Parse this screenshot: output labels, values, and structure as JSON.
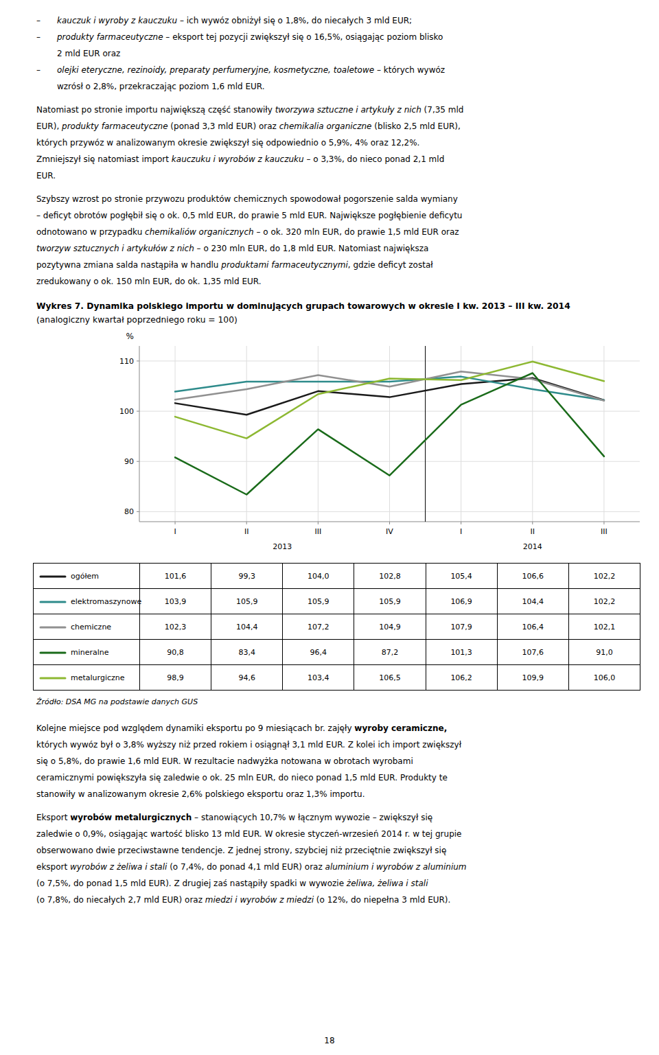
{
  "text_before": [
    {
      "items": [
        {
          "marker": "–",
          "lines": [
            [
              {
                "text": "kauczuk i wyroby z kauczuku",
                "italic": true
              },
              {
                "text": " – ich wywóz obniżył się o 1,8%, do niecałych 3 mld EUR;"
              }
            ]
          ]
        },
        {
          "marker": "–",
          "lines": [
            [
              {
                "text": "produkty farmaceutyczne",
                "italic": true
              },
              {
                "text": " – eksport tej pozycji zwiększył się o 16,5%, osiągając poziom blisko"
              }
            ],
            [
              {
                "text": "2 mld EUR oraz"
              }
            ]
          ]
        },
        {
          "marker": "–",
          "lines": [
            [
              {
                "text": "olejki eteryczne, rezinoidy, preparaty perfumeryjne, kosmetyczne, toaletowe",
                "italic": true
              },
              {
                "text": " – których wywóz"
              }
            ],
            [
              {
                "text": "wzrósł o 2,8%, przekraczając poziom 1,6 mld EUR."
              }
            ]
          ]
        }
      ]
    },
    {
      "lines": [
        [
          {
            "text": "Natomiast po stronie importu największą część stanowiły "
          },
          {
            "text": "tworzywa sztuczne i artykuły z nich",
            "italic": true
          },
          {
            "text": " (7,35 mld"
          }
        ],
        [
          {
            "text": "EUR), "
          },
          {
            "text": "produkty farmaceutyczne",
            "italic": true
          },
          {
            "text": " (ponad 3,3 mld EUR) oraz "
          },
          {
            "text": "chemikalia organiczne",
            "italic": true
          },
          {
            "text": " (blisko 2,5 mld EUR),"
          }
        ],
        [
          {
            "text": "których przywóz w analizowanym okresie zwiększył się odpowiednio o 5,9%, 4% oraz 12,2%."
          }
        ],
        [
          {
            "text": "Zmniejszył się natomiast import "
          },
          {
            "text": "kauczuku i wyrobów z kauczuku",
            "italic": true
          },
          {
            "text": " – o 3,3%, do nieco ponad 2,1 mld"
          }
        ],
        [
          {
            "text": "EUR."
          }
        ]
      ]
    },
    {
      "lines": [
        [
          {
            "text": "Szybszy wzrost po stronie przywozu produktów chemicznych spowodował pogorszenie salda wymiany"
          }
        ],
        [
          {
            "text": "– deficyt obrotów pogłębił się o ok. 0,5 mld EUR, do prawie 5 mld EUR. Największe pogłębienie deficytu"
          }
        ],
        [
          {
            "text": "odnotowano w przypadku "
          },
          {
            "text": "chemikaliów organicznych",
            "italic": true
          },
          {
            "text": " – o ok. 320 mln EUR, do prawie 1,5 mld EUR oraz"
          }
        ],
        [
          {
            "text": "tworzyw sztucznych i artykułów z nich",
            "italic": true
          },
          {
            "text": " – o 230 mln EUR, do 1,8 mld EUR. Natomiast największa"
          }
        ],
        [
          {
            "text": "pozytywna zmiana salda nastąpiła w handlu "
          },
          {
            "text": "produktami farmaceutycznymi",
            "italic": true
          },
          {
            "text": ", gdzie deficyt został"
          }
        ],
        [
          {
            "text": "zredukowany o ok. 150 mln EUR, do ok. 1,35 mld EUR."
          }
        ]
      ]
    }
  ],
  "chart_data": {
    "type": "line",
    "title": "Wykres 7. Dynamika polskiego importu w dominujących grupach towarowych w okresie I kw. 2013 – III kw. 2014",
    "subtitle": "(analogiczny kwartał poprzedniego roku = 100)",
    "y_label": "%",
    "categories": [
      "I",
      "II",
      "III",
      "IV",
      "I",
      "II",
      "III"
    ],
    "year_groups": [
      {
        "label": "2013",
        "count": 4
      },
      {
        "label": "2014",
        "count": 3
      }
    ],
    "series": [
      {
        "name": "ogółem",
        "color": "#1a1a1a",
        "values": [
          101.6,
          99.3,
          104.0,
          102.8,
          105.4,
          106.6,
          102.2
        ],
        "value_labels": [
          "101,6",
          "99,3",
          "104,0",
          "102,8",
          "105,4",
          "106,6",
          "102,2"
        ]
      },
      {
        "name": "elektromaszynowe",
        "color": "#2E8B8B",
        "values": [
          103.9,
          105.9,
          105.9,
          105.9,
          106.9,
          104.4,
          102.2
        ],
        "value_labels": [
          "103,9",
          "105,9",
          "105,9",
          "105,9",
          "106,9",
          "104,4",
          "102,2"
        ]
      },
      {
        "name": "chemiczne",
        "color": "#909090",
        "values": [
          102.3,
          104.4,
          107.2,
          104.9,
          107.9,
          106.4,
          102.1
        ],
        "value_labels": [
          "102,3",
          "104,4",
          "107,2",
          "104,9",
          "107,9",
          "106,4",
          "102,1"
        ]
      },
      {
        "name": "mineralne",
        "color": "#1a6b1a",
        "values": [
          90.8,
          83.4,
          96.4,
          87.2,
          101.3,
          107.6,
          91.0
        ],
        "value_labels": [
          "90,8",
          "83,4",
          "96,4",
          "87,2",
          "101,3",
          "107,6",
          "91,0"
        ]
      },
      {
        "name": "metalurgiczne",
        "color": "#8db832",
        "values": [
          98.9,
          94.6,
          103.4,
          106.5,
          106.2,
          109.9,
          106.0
        ],
        "value_labels": [
          "98,9",
          "94,6",
          "103,4",
          "106,5",
          "106,2",
          "109,9",
          "106,0"
        ]
      }
    ],
    "ylim": [
      78,
      113
    ],
    "yticks": [
      80,
      90,
      100,
      110
    ],
    "grid": true,
    "source": "Źródło: DSA MG na podstawie danych GUS"
  },
  "text_after": [
    {
      "lines": [
        [
          {
            "text": "Kolejne miejsce pod względem dynamiki eksportu po 9 miesiącach br. zajęły "
          },
          {
            "text": "wyroby ceramiczne,",
            "bold": true
          }
        ],
        [
          {
            "text": "których wywóz był o 3,8% wyższy niż przed rokiem i osiągnął 3,1 mld EUR. Z kolei ich import zwiększył"
          }
        ],
        [
          {
            "text": "się o 5,8%, do prawie 1,6 mld EUR. W rezultacie nadwyżka notowana w obrotach wyrobami"
          }
        ],
        [
          {
            "text": "ceramicznymi powiększyła się zaledwie o ok. 25 mln EUR, do nieco ponad 1,5 mld EUR. Produkty te"
          }
        ],
        [
          {
            "text": "stanowiły w analizowanym okresie 2,6% polskiego eksportu oraz 1,3% importu."
          }
        ]
      ]
    },
    {
      "lines": [
        [
          {
            "text": "Eksport "
          },
          {
            "text": "wyrobów metalurgicznych",
            "bold": true
          },
          {
            "text": " – stanowiących 10,7% w łącznym wywozie – zwiększył się"
          }
        ],
        [
          {
            "text": "zaledwie o 0,9%, osiągając wartość blisko 13 mld EUR. W okresie styczeń-wrzesień 2014 r. w tej grupie"
          }
        ],
        [
          {
            "text": "obserwowano dwie przeciwstawne tendencje. Z jednej strony, szybciej niż przeciętnie zwiększył się"
          }
        ],
        [
          {
            "text": "eksport "
          },
          {
            "text": "wyrobów z żeliwa i stali",
            "italic": true
          },
          {
            "text": " (o 7,4%, do ponad 4,1 mld EUR) oraz "
          },
          {
            "text": "aluminium i wyrobów z aluminium",
            "italic": true
          }
        ],
        [
          {
            "text": "(o 7,5%, do ponad 1,5 mld EUR). Z drugiej zaś nastąpiły spadki w wywozie "
          },
          {
            "text": "żeliwa, żeliwa i stali",
            "italic": true
          }
        ],
        [
          {
            "text": "(o 7,8%, do niecałych 2,7 mld EUR) oraz "
          },
          {
            "text": "miedzi i wyrobów z miedzi",
            "italic": true
          },
          {
            "text": " (o 12%, do niepełna 3 mld EUR)."
          }
        ]
      ]
    }
  ],
  "page_number": "18"
}
